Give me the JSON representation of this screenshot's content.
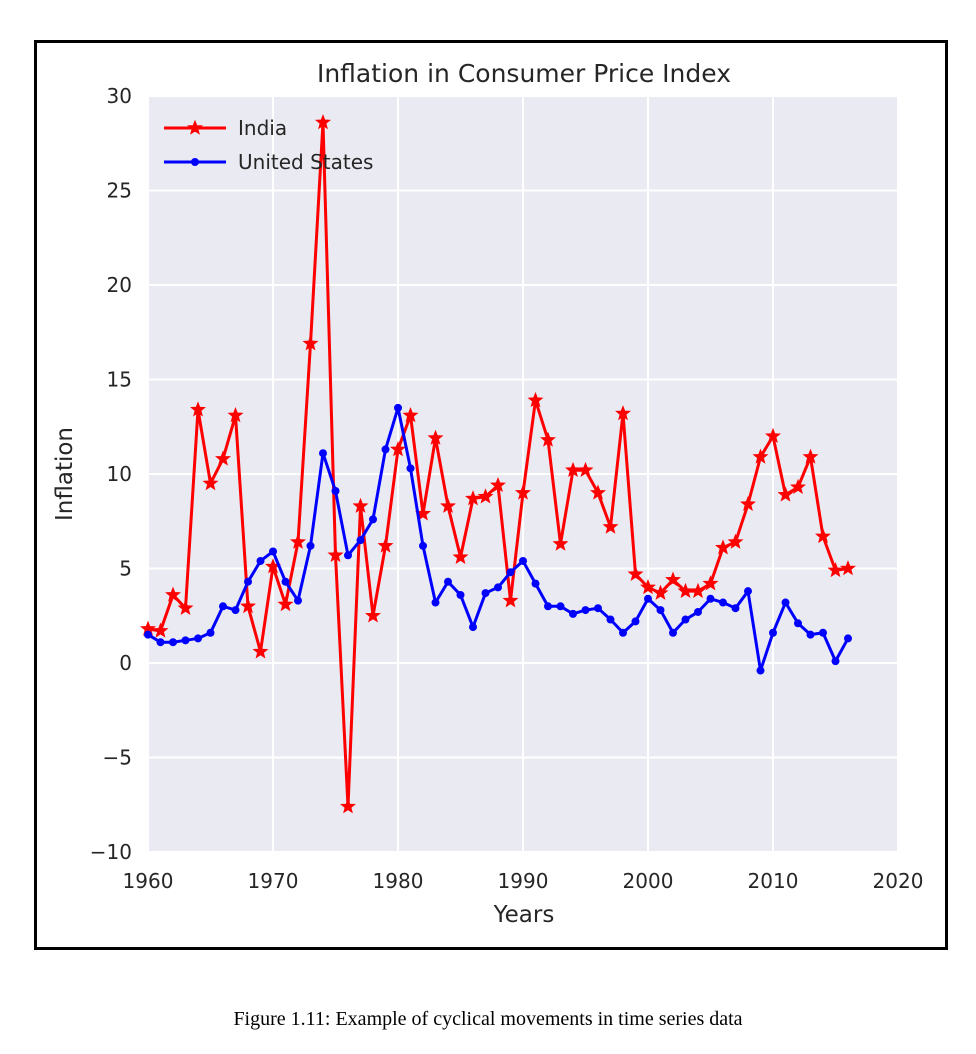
{
  "caption": "Figure 1.11: Example of cyclical movements in time series data",
  "chart_data": {
    "type": "line",
    "title": "Inflation in Consumer Price Index",
    "xlabel": "Years",
    "ylabel": "Inflation",
    "xlim": [
      1960,
      2020
    ],
    "ylim": [
      -10,
      30
    ],
    "xticks": [
      1960,
      1970,
      1980,
      1990,
      2000,
      2010,
      2020
    ],
    "yticks": [
      -10,
      -5,
      0,
      5,
      10,
      15,
      20,
      25,
      30
    ],
    "xtick_labels": [
      "1960",
      "1970",
      "1980",
      "1990",
      "2000",
      "2010",
      "2020"
    ],
    "ytick_labels": [
      "−10",
      "−5",
      "0",
      "5",
      "10",
      "15",
      "20",
      "25",
      "30"
    ],
    "grid": true,
    "legend_position": "top-left",
    "background": "#eaeaf2",
    "series": [
      {
        "name": "India",
        "color": "#ff0000",
        "marker": "star",
        "x": [
          1960,
          1961,
          1962,
          1963,
          1964,
          1965,
          1966,
          1967,
          1968,
          1969,
          1970,
          1971,
          1972,
          1973,
          1974,
          1975,
          1976,
          1977,
          1978,
          1979,
          1980,
          1981,
          1982,
          1983,
          1984,
          1985,
          1986,
          1987,
          1988,
          1989,
          1990,
          1991,
          1992,
          1993,
          1994,
          1995,
          1996,
          1997,
          1998,
          1999,
          2000,
          2001,
          2002,
          2003,
          2004,
          2005,
          2006,
          2007,
          2008,
          2009,
          2010,
          2011,
          2012,
          2013,
          2014,
          2015,
          2016
        ],
        "y": [
          1.8,
          1.7,
          3.6,
          2.9,
          13.4,
          9.5,
          10.8,
          13.1,
          3.0,
          0.6,
          5.1,
          3.1,
          6.4,
          16.9,
          28.6,
          5.7,
          -7.6,
          8.3,
          2.5,
          6.2,
          11.3,
          13.1,
          7.9,
          11.9,
          8.3,
          5.6,
          8.7,
          8.8,
          9.4,
          3.3,
          9.0,
          13.9,
          11.8,
          6.3,
          10.2,
          10.2,
          9.0,
          7.2,
          13.2,
          4.7,
          4.0,
          3.7,
          4.4,
          3.8,
          3.8,
          4.2,
          6.1,
          6.4,
          8.4,
          10.9,
          12.0,
          8.9,
          9.3,
          10.9,
          6.7,
          4.9,
          5.0
        ]
      },
      {
        "name": "United States",
        "color": "#0000ff",
        "marker": "dot",
        "x": [
          1960,
          1961,
          1962,
          1963,
          1964,
          1965,
          1966,
          1967,
          1968,
          1969,
          1970,
          1971,
          1972,
          1973,
          1974,
          1975,
          1976,
          1977,
          1978,
          1979,
          1980,
          1981,
          1982,
          1983,
          1984,
          1985,
          1986,
          1987,
          1988,
          1989,
          1990,
          1991,
          1992,
          1993,
          1994,
          1995,
          1996,
          1997,
          1998,
          1999,
          2000,
          2001,
          2002,
          2003,
          2004,
          2005,
          2006,
          2007,
          2008,
          2009,
          2010,
          2011,
          2012,
          2013,
          2014,
          2015,
          2016
        ],
        "y": [
          1.5,
          1.1,
          1.1,
          1.2,
          1.3,
          1.6,
          3.0,
          2.8,
          4.3,
          5.4,
          5.9,
          4.3,
          3.3,
          6.2,
          11.1,
          9.1,
          5.7,
          6.5,
          7.6,
          11.3,
          13.5,
          10.3,
          6.2,
          3.2,
          4.3,
          3.6,
          1.9,
          3.7,
          4.0,
          4.8,
          5.4,
          4.2,
          3.0,
          3.0,
          2.6,
          2.8,
          2.9,
          2.3,
          1.6,
          2.2,
          3.4,
          2.8,
          1.6,
          2.3,
          2.7,
          3.4,
          3.2,
          2.9,
          3.8,
          -0.4,
          1.6,
          3.2,
          2.1,
          1.5,
          1.6,
          0.1,
          1.3
        ]
      }
    ]
  }
}
